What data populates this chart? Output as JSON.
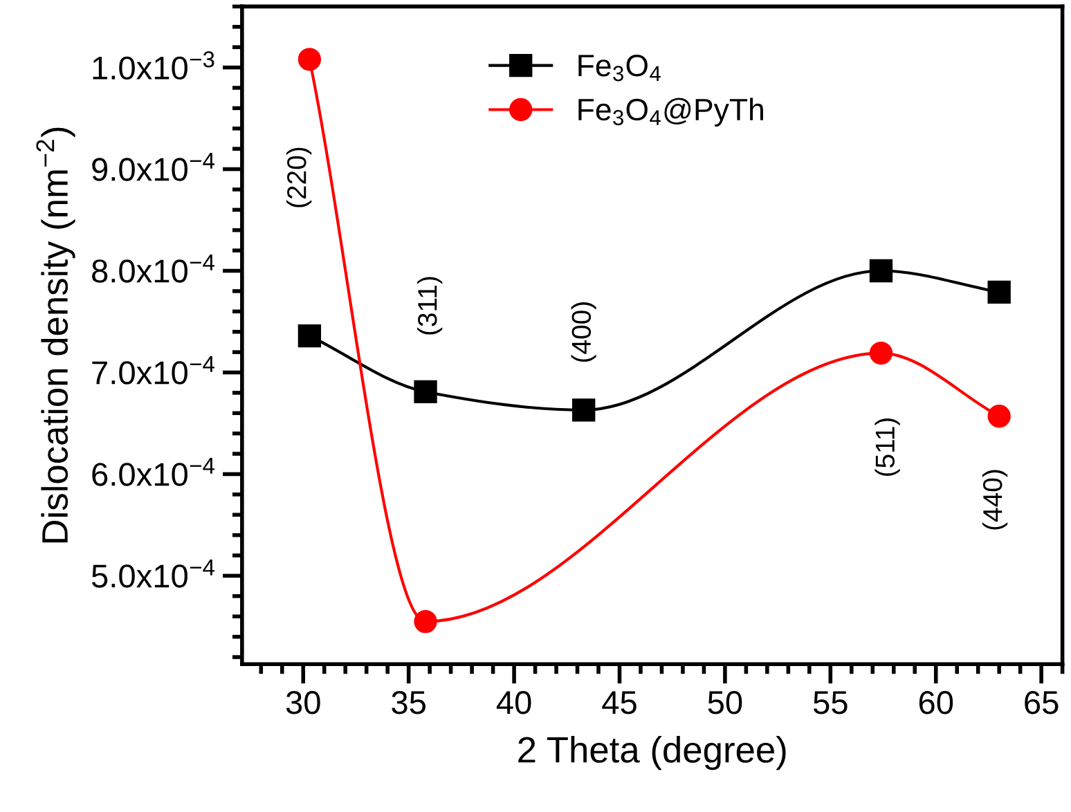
{
  "chart_data": {
    "type": "line",
    "xlabel": "2 Theta (degree)",
    "ylabel": "Dislocation density (nm$^{−2}$)",
    "xlim": [
      27.1,
      66.0
    ],
    "xticks": [
      30,
      35,
      40,
      45,
      50,
      55,
      60,
      65
    ],
    "ylim": [
      0.000413,
      0.00106
    ],
    "yticks": [
      {
        "value": 0.0005,
        "label": "5.0x10$^{−4}$"
      },
      {
        "value": 0.0006,
        "label": "6.0x10$^{−4}$"
      },
      {
        "value": 0.0007,
        "label": "7.0x10$^{−4}$"
      },
      {
        "value": 0.0008,
        "label": "8.0x10$^{−4}$"
      },
      {
        "value": 0.0009,
        "label": "9.0x10$^{−4}$"
      },
      {
        "value": 0.001,
        "label": "1.0x10$^{−3}$"
      }
    ],
    "grid": false,
    "legend": "top",
    "line_style": "solid",
    "series": [
      {
        "name": "Fe$_{3}$O$_{4}$",
        "color": "#000000",
        "marker": "square",
        "x": [
          30.3,
          35.8,
          43.3,
          57.4,
          63.0
        ],
        "values": [
          0.000736,
          0.000681,
          0.000663,
          0.0008,
          0.000779
        ]
      },
      {
        "name": "Fe$_{3}$O$_{4}$@PyTh",
        "color": "#ff0000",
        "marker": "circle",
        "x": [
          30.3,
          35.8,
          57.4,
          63.0
        ],
        "values": [
          0.001008,
          0.000455,
          0.000719,
          0.000657
        ]
      }
    ],
    "annotations": [
      "(220)",
      "(311)",
      "(400)",
      "(511)",
      "(440)"
    ]
  }
}
